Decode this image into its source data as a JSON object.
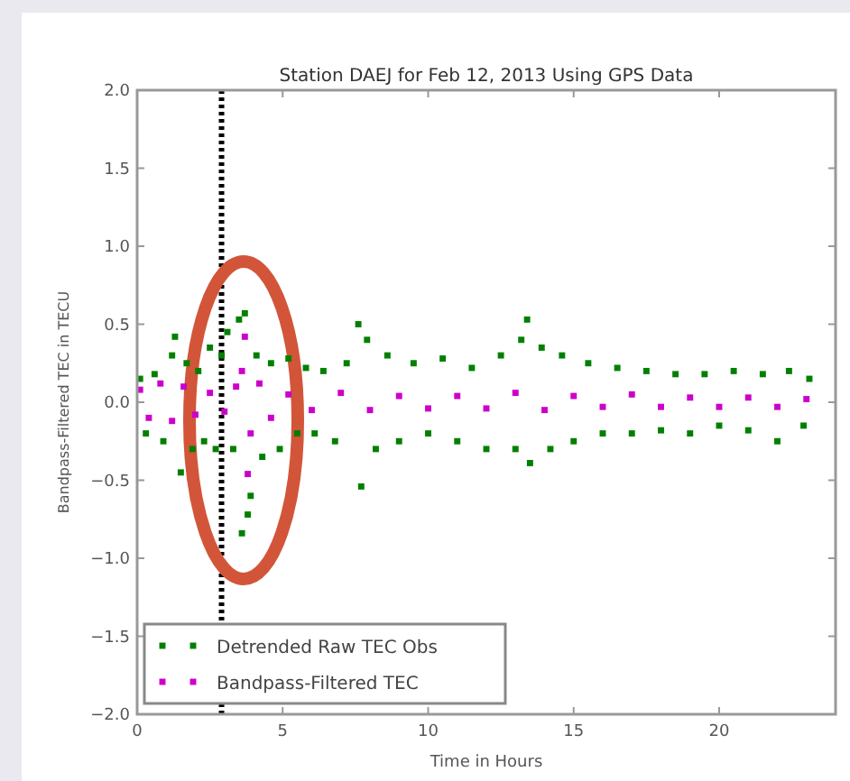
{
  "chart_data": {
    "type": "scatter",
    "title": "Station DAEJ for Feb 12, 2013 Using GPS Data",
    "xlabel": "Time in Hours",
    "ylabel": "Bandpass-Filtered TEC in TECU",
    "xlim": [
      0,
      24
    ],
    "xticks": [
      0,
      5,
      10,
      15,
      20
    ],
    "ylim": [
      -2,
      2
    ],
    "yticks": [
      {
        "value": -2,
        "label": "−2.0"
      },
      {
        "value": -1.5,
        "label": "−1.5"
      },
      {
        "value": -1,
        "label": "−1.0"
      },
      {
        "value": -0.5,
        "label": "−0.5"
      },
      {
        "value": 0,
        "label": "0.0"
      },
      {
        "value": 0.5,
        "label": "0.5"
      },
      {
        "value": 1,
        "label": "1.0"
      },
      {
        "value": 1.5,
        "label": "1.5"
      },
      {
        "value": 2,
        "label": "2.0"
      }
    ],
    "grid": false,
    "legend": "bottom left",
    "marker": "square",
    "ref_lines": [
      {
        "axis": "x",
        "value": 2.9,
        "color": "#000000",
        "line_style": "dotted"
      }
    ],
    "series": [
      {
        "name": "Detrended Raw TEC Obs",
        "color": "#008000",
        "x": [
          0.1,
          0.3,
          0.6,
          0.9,
          1.2,
          1.3,
          1.5,
          1.7,
          1.9,
          2.1,
          2.3,
          2.5,
          2.7,
          2.9,
          3.1,
          3.3,
          3.5,
          3.6,
          3.7,
          3.8,
          3.9,
          4.1,
          4.3,
          4.6,
          4.9,
          5.2,
          5.5,
          5.8,
          6.1,
          6.4,
          6.8,
          7.2,
          7.6,
          7.7,
          7.9,
          8.2,
          8.6,
          9.0,
          9.5,
          10.0,
          10.5,
          11.0,
          11.5,
          12.0,
          12.5,
          13.0,
          13.2,
          13.4,
          13.5,
          13.9,
          14.2,
          14.6,
          15.0,
          15.5,
          16.0,
          16.5,
          17.0,
          17.5,
          18.0,
          18.5,
          19.0,
          19.5,
          20.0,
          20.5,
          21.0,
          21.5,
          22.0,
          22.4,
          22.9,
          23.1
        ],
        "values": [
          0.15,
          -0.2,
          0.18,
          -0.25,
          0.3,
          0.42,
          -0.45,
          0.25,
          -0.3,
          0.2,
          -0.25,
          0.35,
          -0.3,
          0.3,
          0.45,
          -0.3,
          0.53,
          -0.84,
          0.57,
          -0.72,
          -0.6,
          0.3,
          -0.35,
          0.25,
          -0.3,
          0.28,
          -0.2,
          0.22,
          -0.2,
          0.2,
          -0.25,
          0.25,
          0.5,
          -0.54,
          0.4,
          -0.3,
          0.3,
          -0.25,
          0.25,
          -0.2,
          0.28,
          -0.25,
          0.22,
          -0.3,
          0.3,
          -0.3,
          0.4,
          0.53,
          -0.39,
          0.35,
          -0.3,
          0.3,
          -0.25,
          0.25,
          -0.2,
          0.22,
          -0.2,
          0.2,
          -0.18,
          0.18,
          -0.2,
          0.18,
          -0.15,
          0.2,
          -0.18,
          0.18,
          -0.25,
          0.2,
          -0.15,
          0.15
        ]
      },
      {
        "name": "Bandpass-Filtered TEC",
        "color": "#cc00cc",
        "x": [
          0.1,
          0.4,
          0.8,
          1.2,
          1.6,
          2.0,
          2.5,
          3.0,
          3.4,
          3.6,
          3.7,
          3.8,
          3.9,
          4.2,
          4.6,
          5.2,
          6.0,
          7.0,
          8.0,
          9.0,
          10.0,
          11.0,
          12.0,
          13.0,
          14.0,
          15.0,
          16.0,
          17.0,
          18.0,
          19.0,
          20.0,
          21.0,
          22.0,
          23.0
        ],
        "values": [
          0.08,
          -0.1,
          0.12,
          -0.12,
          0.1,
          -0.08,
          0.06,
          -0.06,
          0.1,
          0.2,
          0.42,
          -0.46,
          -0.2,
          0.12,
          -0.1,
          0.05,
          -0.05,
          0.06,
          -0.05,
          0.04,
          -0.04,
          0.04,
          -0.04,
          0.06,
          -0.05,
          0.04,
          -0.03,
          0.05,
          -0.03,
          0.03,
          -0.03,
          0.03,
          -0.03,
          0.02
        ]
      }
    ]
  }
}
